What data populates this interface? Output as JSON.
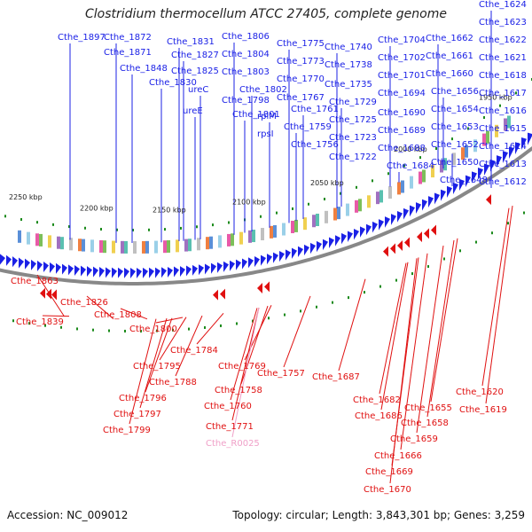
{
  "title": "Clostridium thermocellum ATCC 27405, complete genome",
  "footer": {
    "accession": "Accession: NC_009012",
    "summary": "Topology: circular; Length: 3,843,301 bp; Genes: 3,259"
  },
  "colors": {
    "forward": "#1b21e6",
    "reverse": "#e01010",
    "rna": "#f0a0c8",
    "backbone": "#888888",
    "tick": "#1a8a1a"
  },
  "ticks": [
    "2250 kbp",
    "2200 kbp",
    "2150 kbp",
    "2100 kbp",
    "2050 kbp",
    "2000 kbp",
    "1950 kbp"
  ],
  "top_labels": [
    "Cthe_1897",
    "Cthe_1872",
    "Cthe_1871",
    "Cthe_1848",
    "Cthe_1831",
    "Cthe_1827",
    "Cthe_1825",
    "Cthe_1830",
    "ureC",
    "ureE",
    "Cthe_1806",
    "Cthe_1804",
    "Cthe_1803",
    "Cthe_1802",
    "Cthe_1798",
    "Cthe_1801",
    "Cthe_1775",
    "Cthe_1773",
    "Cthe_1770",
    "Cthe_1767",
    "Cthe_1761",
    "Cthe_1759",
    "Cthe_1756",
    "rplM",
    "rpsI",
    "Cthe_1740",
    "Cthe_1738",
    "Cthe_1735",
    "Cthe_1729",
    "Cthe_1725",
    "Cthe_1723",
    "Cthe_1722",
    "Cthe_1704",
    "Cthe_1702",
    "Cthe_1701",
    "Cthe_1694",
    "Cthe_1690",
    "Cthe_1689",
    "Cthe_1688",
    "Cthe_1684",
    "Cthe_1662",
    "Cthe_1661",
    "Cthe_1660",
    "Cthe_1656",
    "Cthe_1654",
    "Cthe_1653",
    "Cthe_1652",
    "Cthe_1650",
    "Cthe_1648",
    "Cthe_1624",
    "Cthe_1623",
    "Cthe_1622",
    "Cthe_1621",
    "Cthe_1618",
    "Cthe_1617",
    "Cthe_1616",
    "Cthe_1615",
    "Cthe_1614",
    "Cthe_1613",
    "Cthe_1612"
  ],
  "bottom_labels": [
    "Cthe_1863",
    "Cthe_1839",
    "Cthe_1826",
    "Cthe_1808",
    "Cthe_1800",
    "Cthe_1784",
    "Cthe_1795",
    "Cthe_1769",
    "Cthe_1788",
    "Cthe_1757",
    "Cthe_1758",
    "Cthe_1796",
    "Cthe_1760",
    "Cthe_1797",
    "Cthe_1771",
    "Cthe_1799",
    "Cthe_R0025",
    "Cthe_1687",
    "Cthe_1682",
    "Cthe_1686",
    "Cthe_1655",
    "Cthe_1658",
    "Cthe_1659",
    "Cthe_1666",
    "Cthe_1669",
    "Cthe_1670",
    "Cthe_1620",
    "Cthe_1619"
  ]
}
